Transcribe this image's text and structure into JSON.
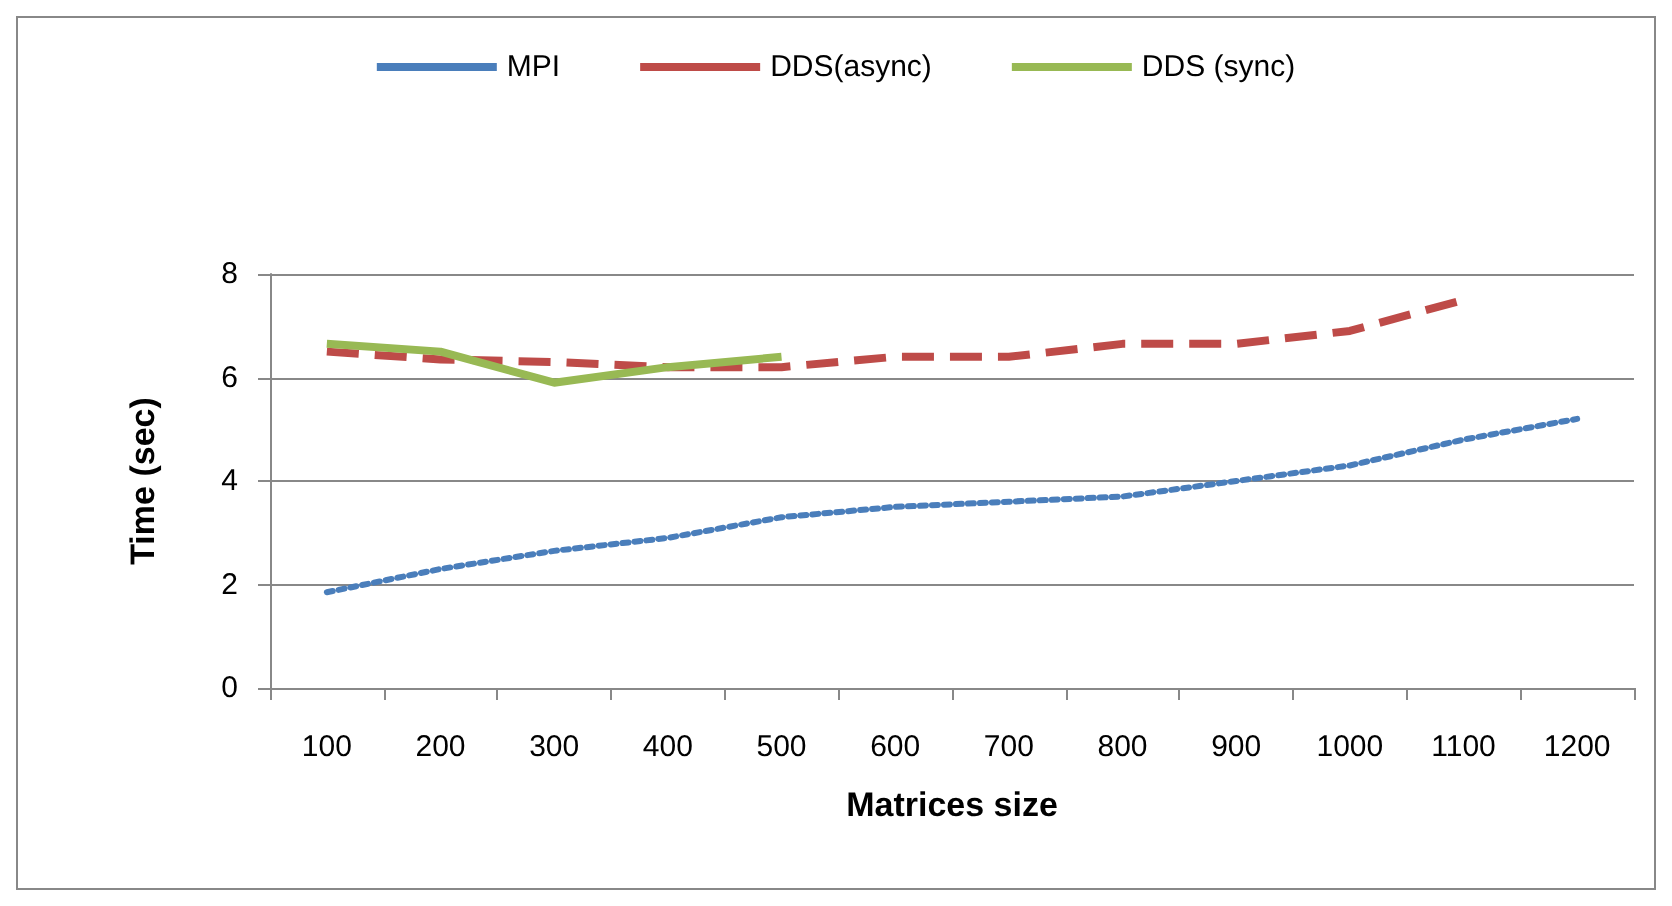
{
  "chart_data": {
    "type": "line",
    "xlabel": "Matrices size",
    "ylabel": "Time (sec)",
    "categories": [
      "100",
      "200",
      "300",
      "400",
      "500",
      "600",
      "700",
      "800",
      "900",
      "1000",
      "1100",
      "1200"
    ],
    "series": [
      {
        "name": "MPI",
        "color": "#4a7ebb",
        "line_style": "dotted",
        "values": [
          1.85,
          2.3,
          2.65,
          2.9,
          3.3,
          3.5,
          3.6,
          3.7,
          4.0,
          4.3,
          4.8,
          5.2
        ]
      },
      {
        "name": "DDS(async)",
        "color": "#be4b48",
        "line_style": "dashed",
        "values": [
          6.5,
          6.35,
          6.3,
          6.2,
          6.2,
          6.4,
          6.4,
          6.65,
          6.65,
          6.9,
          7.5,
          null
        ]
      },
      {
        "name": "DDS (sync)",
        "color": "#98b954",
        "line_style": "solid",
        "values": [
          6.65,
          6.5,
          5.9,
          6.2,
          6.4,
          null,
          null,
          null,
          null,
          null,
          null,
          null
        ]
      }
    ],
    "ylim": [
      0,
      8
    ],
    "yticks": [
      0,
      2,
      4,
      6,
      8
    ],
    "grid": "y",
    "legend": "top",
    "marker": "none"
  }
}
